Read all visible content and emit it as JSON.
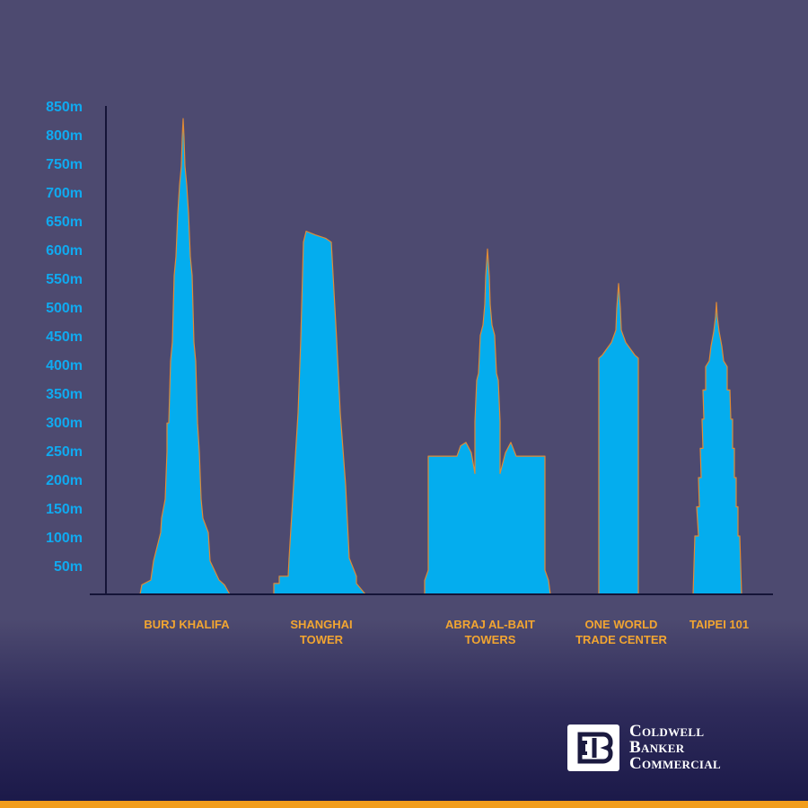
{
  "chart_data": {
    "type": "bar",
    "categories": [
      {
        "line1": "BURJ KHALIFA",
        "line2": ""
      },
      {
        "line1": "SHANGHAI",
        "line2": "TOWER"
      },
      {
        "line1": "ABRAJ AL-BAIT",
        "line2": "TOWERS"
      },
      {
        "line1": "ONE WORLD",
        "line2": "TRADE CENTER"
      },
      {
        "line1": "TAIPEI 101",
        "line2": ""
      }
    ],
    "values": [
      828,
      632,
      601,
      541,
      508
    ],
    "unit": "m",
    "ylim": [
      0,
      850
    ],
    "yticks": [
      "50m",
      "100m",
      "150m",
      "200m",
      "250m",
      "300m",
      "350m",
      "400m",
      "450m",
      "500m",
      "550m",
      "600m",
      "650m",
      "700m",
      "750m",
      "800m",
      "850m"
    ],
    "grid": false,
    "colors": {
      "tower_fill": "#04adee",
      "tower_outline": "#e08a35",
      "tick_text": "#10aaf0",
      "label_text": "#f2a531",
      "axis": "#151437"
    }
  },
  "logo": {
    "line1": "Coldwell",
    "line2": "Banker",
    "line3": "Commercial",
    "icon": "cb-logo-icon"
  },
  "colors": {
    "background": "#4d4a70",
    "footer_bar": "#f29d1c"
  }
}
